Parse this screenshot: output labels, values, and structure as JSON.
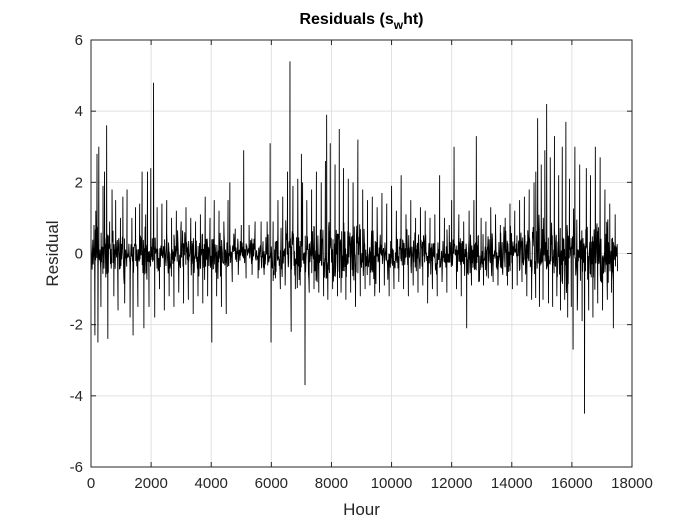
{
  "chart_data": {
    "type": "line",
    "title_main": "Residuals (s",
    "title_sub": "w",
    "title_end": "ht)",
    "xlabel": "Hour",
    "ylabel": "Residual",
    "xlim": [
      0,
      18000
    ],
    "ylim": [
      -6,
      6
    ],
    "xticks": [
      0,
      2000,
      4000,
      6000,
      8000,
      10000,
      12000,
      14000,
      16000,
      18000
    ],
    "yticks": [
      -6,
      -4,
      -2,
      0,
      2,
      4,
      6
    ],
    "grid": true,
    "line_color": "#000000",
    "x_end": 17520,
    "spikes": [
      [
        100,
        0.8
      ],
      [
        130,
        -2.3
      ],
      [
        160,
        1.2
      ],
      [
        200,
        2.8
      ],
      [
        230,
        -2.5
      ],
      [
        260,
        3.0
      ],
      [
        330,
        -1.5
      ],
      [
        400,
        1.9
      ],
      [
        450,
        2.3
      ],
      [
        520,
        3.6
      ],
      [
        560,
        -2.4
      ],
      [
        620,
        0.9
      ],
      [
        700,
        1.8
      ],
      [
        760,
        -1.2
      ],
      [
        820,
        1.5
      ],
      [
        900,
        -1.6
      ],
      [
        980,
        1.0
      ],
      [
        1060,
        1.6
      ],
      [
        1120,
        -1.4
      ],
      [
        1200,
        1.8
      ],
      [
        1300,
        -1.8
      ],
      [
        1360,
        1.0
      ],
      [
        1400,
        -2.3
      ],
      [
        1480,
        1.3
      ],
      [
        1560,
        -1.5
      ],
      [
        1620,
        1.4
      ],
      [
        1700,
        2.3
      ],
      [
        1760,
        -2.1
      ],
      [
        1820,
        1.1
      ],
      [
        1880,
        2.3
      ],
      [
        1930,
        -1.5
      ],
      [
        1990,
        2.4
      ],
      [
        2080,
        4.8
      ],
      [
        2120,
        -1.8
      ],
      [
        2200,
        1.3
      ],
      [
        2280,
        -1.0
      ],
      [
        2360,
        1.4
      ],
      [
        2440,
        -1.6
      ],
      [
        2520,
        1.5
      ],
      [
        2600,
        -1.2
      ],
      [
        2680,
        1.0
      ],
      [
        2760,
        -1.5
      ],
      [
        2840,
        1.2
      ],
      [
        2920,
        -1.1
      ],
      [
        3000,
        0.9
      ],
      [
        3080,
        -1.4
      ],
      [
        3160,
        1.3
      ],
      [
        3240,
        -1.3
      ],
      [
        3320,
        1.0
      ],
      [
        3400,
        -1.7
      ],
      [
        3480,
        0.9
      ],
      [
        3560,
        -1.2
      ],
      [
        3640,
        1.1
      ],
      [
        3720,
        -1.4
      ],
      [
        3800,
        1.6
      ],
      [
        3880,
        -1.2
      ],
      [
        3960,
        1.0
      ],
      [
        4020,
        -2.5
      ],
      [
        4100,
        1.5
      ],
      [
        4180,
        -1.2
      ],
      [
        4260,
        1.2
      ],
      [
        4340,
        -1.5
      ],
      [
        4420,
        0.9
      ],
      [
        4500,
        -1.7
      ],
      [
        4560,
        1.5
      ],
      [
        4620,
        2.0
      ],
      [
        4700,
        -0.8
      ],
      [
        4800,
        0.7
      ],
      [
        4900,
        -0.6
      ],
      [
        5000,
        0.8
      ],
      [
        5080,
        2.9
      ],
      [
        5160,
        -0.7
      ],
      [
        5260,
        0.8
      ],
      [
        5360,
        -0.6
      ],
      [
        5460,
        0.9
      ],
      [
        5560,
        -0.7
      ],
      [
        5660,
        0.9
      ],
      [
        5760,
        -0.6
      ],
      [
        5860,
        0.9
      ],
      [
        5960,
        3.1
      ],
      [
        5990,
        -2.5
      ],
      [
        6060,
        0.9
      ],
      [
        6140,
        -0.7
      ],
      [
        6220,
        1.5
      ],
      [
        6300,
        -1.0
      ],
      [
        6380,
        1.6
      ],
      [
        6460,
        -0.9
      ],
      [
        6540,
        2.3
      ],
      [
        6620,
        5.4
      ],
      [
        6660,
        -2.2
      ],
      [
        6720,
        1.9
      ],
      [
        6800,
        -1.0
      ],
      [
        6880,
        2.1
      ],
      [
        6960,
        -0.9
      ],
      [
        7000,
        2.8
      ],
      [
        7040,
        2.0
      ],
      [
        7120,
        -3.7
      ],
      [
        7180,
        1.5
      ],
      [
        7260,
        -1.1
      ],
      [
        7340,
        1.8
      ],
      [
        7420,
        -1.0
      ],
      [
        7500,
        2.3
      ],
      [
        7580,
        -1.1
      ],
      [
        7660,
        2.0
      ],
      [
        7740,
        -1.2
      ],
      [
        7800,
        2.6
      ],
      [
        7840,
        3.9
      ],
      [
        7880,
        -1.3
      ],
      [
        7960,
        3.1
      ],
      [
        8040,
        -1.0
      ],
      [
        8120,
        2.5
      ],
      [
        8200,
        -1.2
      ],
      [
        8260,
        3.5
      ],
      [
        8320,
        -1.1
      ],
      [
        8400,
        2.4
      ],
      [
        8480,
        -1.3
      ],
      [
        8560,
        2.1
      ],
      [
        8640,
        -1.1
      ],
      [
        8720,
        2.0
      ],
      [
        8800,
        -1.5
      ],
      [
        8880,
        3.2
      ],
      [
        8960,
        -1.2
      ],
      [
        9040,
        1.8
      ],
      [
        9120,
        -1.0
      ],
      [
        9200,
        1.5
      ],
      [
        9280,
        -0.9
      ],
      [
        9360,
        1.6
      ],
      [
        9440,
        -1.2
      ],
      [
        9520,
        1.3
      ],
      [
        9600,
        -1.1
      ],
      [
        9680,
        1.7
      ],
      [
        9760,
        -0.9
      ],
      [
        9840,
        1.4
      ],
      [
        9920,
        -1.2
      ],
      [
        10000,
        1.9
      ],
      [
        10080,
        -1.0
      ],
      [
        10160,
        1.2
      ],
      [
        10240,
        -0.8
      ],
      [
        10320,
        2.2
      ],
      [
        10400,
        -1.0
      ],
      [
        10480,
        1.1
      ],
      [
        10560,
        -1.2
      ],
      [
        10640,
        1.5
      ],
      [
        10720,
        -0.9
      ],
      [
        10800,
        1.0
      ],
      [
        10880,
        -1.1
      ],
      [
        10960,
        1.3
      ],
      [
        11040,
        -0.9
      ],
      [
        11120,
        1.2
      ],
      [
        11200,
        -1.4
      ],
      [
        11280,
        1.0
      ],
      [
        11360,
        -1.0
      ],
      [
        11440,
        1.1
      ],
      [
        11520,
        -1.2
      ],
      [
        11600,
        2.2
      ],
      [
        11680,
        -0.8
      ],
      [
        11760,
        1.0
      ],
      [
        11840,
        -1.1
      ],
      [
        11920,
        0.8
      ],
      [
        12000,
        1.5
      ],
      [
        12080,
        3.0
      ],
      [
        12160,
        -1.0
      ],
      [
        12240,
        1.1
      ],
      [
        12320,
        -1.2
      ],
      [
        12400,
        0.9
      ],
      [
        12500,
        -2.1
      ],
      [
        12580,
        1.2
      ],
      [
        12660,
        -0.9
      ],
      [
        12740,
        1.5
      ],
      [
        12820,
        3.3
      ],
      [
        12900,
        -0.8
      ],
      [
        12980,
        1.0
      ],
      [
        13060,
        -0.9
      ],
      [
        13140,
        0.9
      ],
      [
        13220,
        -0.7
      ],
      [
        13300,
        1.3
      ],
      [
        13380,
        -0.8
      ],
      [
        13460,
        1.1
      ],
      [
        13540,
        -0.9
      ],
      [
        13620,
        0.8
      ],
      [
        13700,
        -0.6
      ],
      [
        13780,
        1.0
      ],
      [
        13860,
        -0.9
      ],
      [
        13940,
        1.4
      ],
      [
        14020,
        -1.0
      ],
      [
        14100,
        1.2
      ],
      [
        14180,
        -0.9
      ],
      [
        14260,
        1.5
      ],
      [
        14340,
        -0.8
      ],
      [
        14420,
        1.6
      ],
      [
        14500,
        -1.2
      ],
      [
        14580,
        1.8
      ],
      [
        14660,
        -1.3
      ],
      [
        14740,
        2.0
      ],
      [
        14800,
        2.3
      ],
      [
        14860,
        3.8
      ],
      [
        14920,
        -1.5
      ],
      [
        14980,
        2.5
      ],
      [
        15040,
        -1.3
      ],
      [
        15100,
        2.9
      ],
      [
        15160,
        4.2
      ],
      [
        15220,
        -1.4
      ],
      [
        15280,
        2.7
      ],
      [
        15360,
        -1.5
      ],
      [
        15420,
        3.3
      ],
      [
        15500,
        -1.2
      ],
      [
        15560,
        2.2
      ],
      [
        15620,
        -1.6
      ],
      [
        15680,
        3.0
      ],
      [
        15760,
        -1.3
      ],
      [
        15800,
        3.7
      ],
      [
        15860,
        -1.8
      ],
      [
        15920,
        2.1
      ],
      [
        15980,
        -1.5
      ],
      [
        16040,
        -2.7
      ],
      [
        16100,
        3.0
      ],
      [
        16180,
        -1.6
      ],
      [
        16260,
        2.5
      ],
      [
        16340,
        -1.9
      ],
      [
        16420,
        -4.5
      ],
      [
        16480,
        2.4
      ],
      [
        16560,
        -1.6
      ],
      [
        16620,
        2.2
      ],
      [
        16700,
        -1.8
      ],
      [
        16780,
        3.0
      ],
      [
        16860,
        -1.4
      ],
      [
        16940,
        2.7
      ],
      [
        17020,
        -1.6
      ],
      [
        17100,
        1.8
      ],
      [
        17180,
        -1.3
      ],
      [
        17260,
        1.4
      ],
      [
        17320,
        -1.1
      ],
      [
        17380,
        -2.1
      ],
      [
        17440,
        1.1
      ],
      [
        17520,
        -0.5
      ]
    ]
  }
}
